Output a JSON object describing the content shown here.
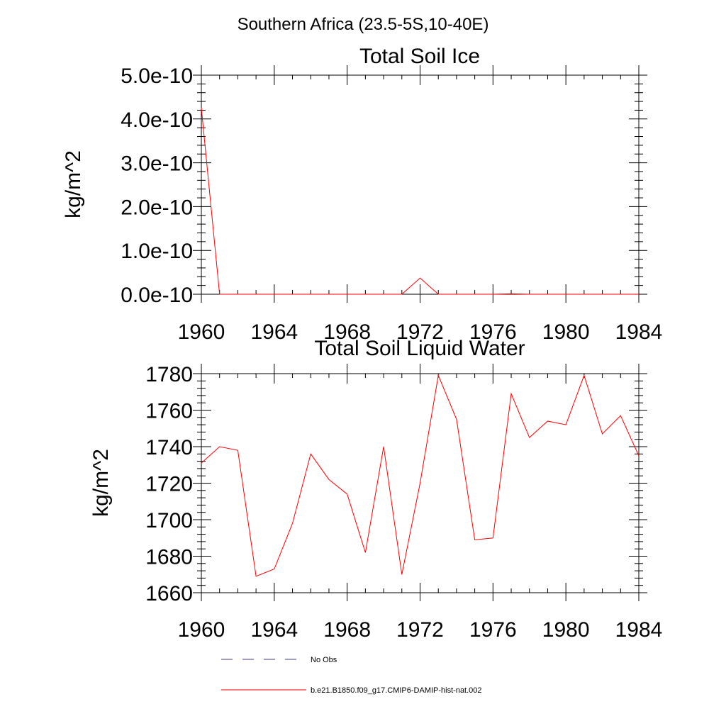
{
  "figure": {
    "title": "Southern Africa (23.5-5S,10-40E)"
  },
  "chart_data": [
    {
      "type": "line",
      "title": "Total Soil Ice",
      "xlabel": "",
      "ylabel": "kg/m^2",
      "xlim": [
        1960,
        1984
      ],
      "ylim": [
        0,
        5e-10
      ],
      "x_ticks": [
        1960,
        1964,
        1968,
        1972,
        1976,
        1980,
        1984
      ],
      "x_tick_labels": [
        "1960",
        "1964",
        "1968",
        "1972",
        "1976",
        "1980",
        "1984"
      ],
      "y_ticks": [
        0,
        1e-10,
        2e-10,
        3e-10,
        4e-10,
        5e-10
      ],
      "y_tick_labels": [
        "0.0e-10",
        "1.0e-10",
        "2.0e-10",
        "3.0e-10",
        "4.0e-10",
        "5.0e-10"
      ],
      "grid": false,
      "x": [
        1960,
        1961,
        1962,
        1963,
        1964,
        1965,
        1966,
        1967,
        1968,
        1969,
        1970,
        1971,
        1972,
        1973,
        1974,
        1975,
        1976,
        1977,
        1978,
        1979,
        1980,
        1981,
        1982,
        1983,
        1984
      ],
      "series": [
        {
          "name": "b.e21.B1850.f09_g17.CMIP6-DAMIP-hist-nat.002",
          "color": "#ff0000",
          "values": [
            4.25e-10,
            0,
            0,
            0,
            0,
            0,
            0,
            0,
            0,
            0,
            0,
            0,
            3.7e-11,
            0,
            0,
            0,
            0,
            1e-12,
            0,
            0,
            0,
            0,
            0,
            0,
            0
          ]
        }
      ]
    },
    {
      "type": "line",
      "title": "Total Soil Liquid Water",
      "xlabel": "",
      "ylabel": "kg/m^2",
      "xlim": [
        1960,
        1984
      ],
      "ylim": [
        1660,
        1780
      ],
      "x_ticks": [
        1960,
        1964,
        1968,
        1972,
        1976,
        1980,
        1984
      ],
      "x_tick_labels": [
        "1960",
        "1964",
        "1968",
        "1972",
        "1976",
        "1980",
        "1984"
      ],
      "y_ticks": [
        1660,
        1680,
        1700,
        1720,
        1740,
        1760,
        1780
      ],
      "y_tick_labels": [
        "1660",
        "1680",
        "1700",
        "1720",
        "1740",
        "1760",
        "1780"
      ],
      "grid": false,
      "x": [
        1960,
        1961,
        1962,
        1963,
        1964,
        1965,
        1966,
        1967,
        1968,
        1969,
        1970,
        1971,
        1972,
        1973,
        1974,
        1975,
        1976,
        1977,
        1978,
        1979,
        1980,
        1981,
        1982,
        1983,
        1984
      ],
      "series": [
        {
          "name": "b.e21.B1850.f09_g17.CMIP6-DAMIP-hist-nat.002",
          "color": "#ff0000",
          "values": [
            1731,
            1740,
            1738,
            1669,
            1673,
            1698,
            1736,
            1722,
            1714,
            1682,
            1740,
            1670,
            1720,
            1779,
            1755,
            1689,
            1690,
            1769,
            1745,
            1754,
            1752,
            1779,
            1747,
            1757,
            1735
          ]
        }
      ]
    }
  ],
  "legend": {
    "placement": "bottom-left",
    "items": [
      {
        "label": "No Obs",
        "color": "#3b3b8c",
        "style": "dashed"
      },
      {
        "label": "b.e21.B1850.f09_g17.CMIP6-DAMIP-hist-nat.002",
        "color": "#ff0000",
        "style": "solid"
      }
    ]
  }
}
